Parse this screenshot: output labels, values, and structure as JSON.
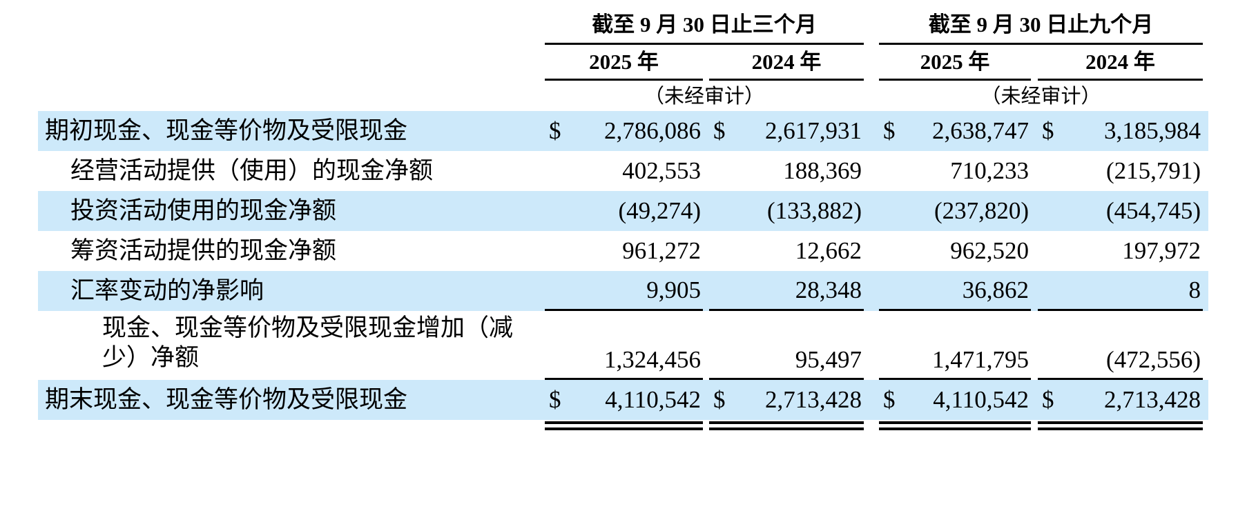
{
  "table": {
    "currency_symbol": "$",
    "shade_color": "#cde9fa",
    "groups": [
      {
        "title": "截至 9 月 30 日止三个月",
        "unaudited": "（未经审计）"
      },
      {
        "title": "截至 9 月 30 日止九个月",
        "unaudited": "（未经审计）"
      }
    ],
    "year_cols": [
      "2025 年",
      "2024 年",
      "2025 年",
      "2024 年"
    ],
    "rows": [
      {
        "label": "期初现金、现金等价物及受限现金",
        "indent": 0,
        "shaded": true,
        "dollar": true,
        "rule_below": false,
        "values": [
          "2,786,086",
          "2,617,931",
          "2,638,747",
          "3,185,984"
        ]
      },
      {
        "label": "经营活动提供（使用）的现金净额",
        "indent": 1,
        "shaded": false,
        "dollar": false,
        "rule_below": false,
        "values": [
          "402,553",
          "188,369",
          "710,233",
          "(215,791)"
        ]
      },
      {
        "label": "投资活动使用的现金净额",
        "indent": 1,
        "shaded": true,
        "dollar": false,
        "rule_below": false,
        "values": [
          "(49,274)",
          "(133,882)",
          "(237,820)",
          "(454,745)"
        ]
      },
      {
        "label": "筹资活动提供的现金净额",
        "indent": 1,
        "shaded": false,
        "dollar": false,
        "rule_below": false,
        "values": [
          "961,272",
          "12,662",
          "962,520",
          "197,972"
        ]
      },
      {
        "label": "汇率变动的净影响",
        "indent": 1,
        "shaded": true,
        "dollar": false,
        "rule_below": true,
        "values": [
          "9,905",
          "28,348",
          "36,862",
          "8"
        ]
      },
      {
        "label": "现金、现金等价物及受限现金增加（减\n少）净额",
        "indent": 2,
        "shaded": false,
        "dollar": false,
        "rule_below": true,
        "values": [
          "1,324,456",
          "95,497",
          "1,471,795",
          "(472,556)"
        ]
      },
      {
        "label": "期末现金、现金等价物及受限现金",
        "indent": 0,
        "shaded": true,
        "dollar": true,
        "rule_below": false,
        "values": [
          "4,110,542",
          "2,713,428",
          "4,110,542",
          "2,713,428"
        ]
      }
    ]
  }
}
